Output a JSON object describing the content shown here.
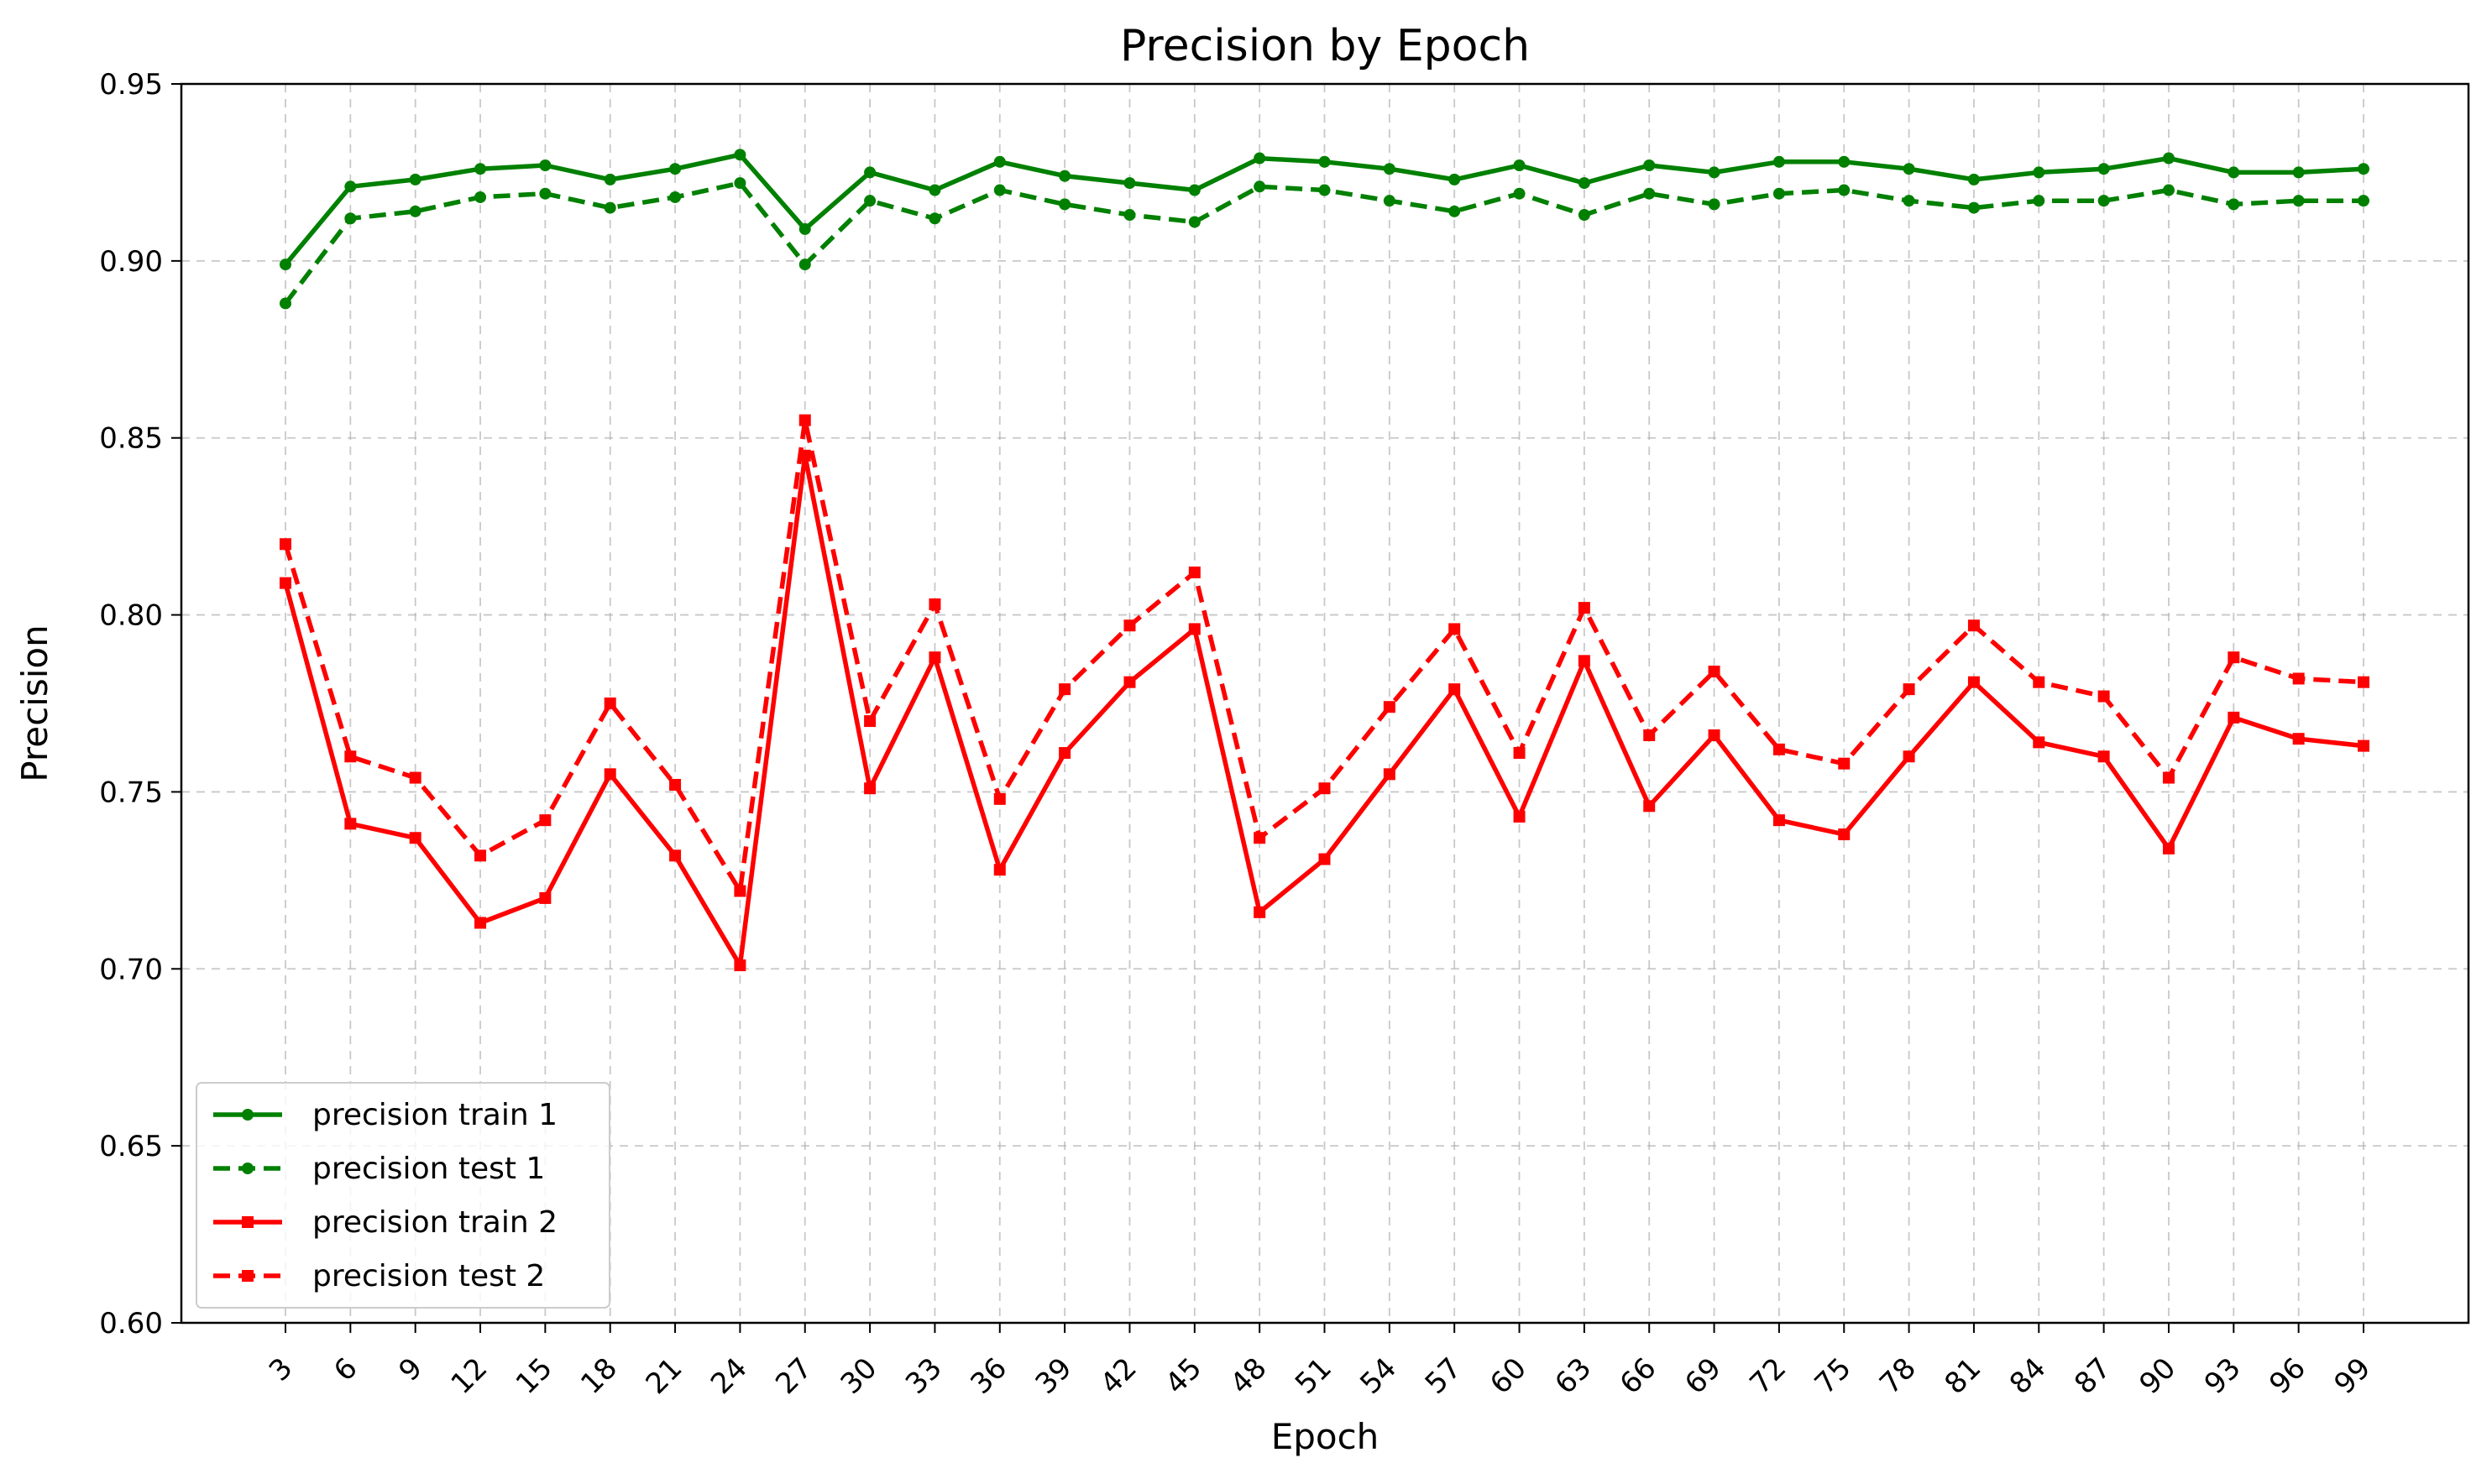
{
  "chart_data": {
    "type": "line",
    "title": "Precision by Epoch",
    "xlabel": "Epoch",
    "ylabel": "Precision",
    "ylim": [
      0.6,
      0.95
    ],
    "yticks": [
      "0.60",
      "0.65",
      "0.70",
      "0.75",
      "0.80",
      "0.85",
      "0.90",
      "0.95"
    ],
    "grid": true,
    "legend_position": "lower-left",
    "x": [
      3,
      6,
      9,
      12,
      15,
      18,
      21,
      24,
      27,
      30,
      33,
      36,
      39,
      42,
      45,
      48,
      51,
      54,
      57,
      60,
      63,
      66,
      69,
      72,
      75,
      78,
      81,
      84,
      87,
      90,
      93,
      96,
      99
    ],
    "series": [
      {
        "name": "precision train 1",
        "color": "#008000",
        "style": "solid",
        "marker": "circle",
        "values": [
          0.899,
          0.921,
          0.923,
          0.926,
          0.927,
          0.923,
          0.926,
          0.93,
          0.909,
          0.925,
          0.92,
          0.928,
          0.924,
          0.922,
          0.92,
          0.929,
          0.928,
          0.926,
          0.923,
          0.927,
          0.922,
          0.927,
          0.925,
          0.928,
          0.928,
          0.926,
          0.923,
          0.925,
          0.926,
          0.929,
          0.925,
          0.925,
          0.926
        ]
      },
      {
        "name": "precision test 1",
        "color": "#008000",
        "style": "dashed",
        "marker": "circle",
        "values": [
          0.888,
          0.912,
          0.914,
          0.918,
          0.919,
          0.915,
          0.918,
          0.922,
          0.899,
          0.917,
          0.912,
          0.92,
          0.916,
          0.913,
          0.911,
          0.921,
          0.92,
          0.917,
          0.914,
          0.919,
          0.913,
          0.919,
          0.916,
          0.919,
          0.92,
          0.917,
          0.915,
          0.917,
          0.917,
          0.92,
          0.916,
          0.917,
          0.917
        ]
      },
      {
        "name": "precision train 2",
        "color": "#ff0000",
        "style": "solid",
        "marker": "square",
        "values": [
          0.809,
          0.741,
          0.737,
          0.713,
          0.72,
          0.755,
          0.732,
          0.701,
          0.845,
          0.751,
          0.788,
          0.728,
          0.761,
          0.781,
          0.796,
          0.716,
          0.731,
          0.755,
          0.779,
          0.743,
          0.787,
          0.746,
          0.766,
          0.742,
          0.738,
          0.76,
          0.781,
          0.764,
          0.76,
          0.734,
          0.771,
          0.765,
          0.763
        ]
      },
      {
        "name": "precision test 2",
        "color": "#ff0000",
        "style": "dashed",
        "marker": "square",
        "values": [
          0.82,
          0.76,
          0.754,
          0.732,
          0.742,
          0.775,
          0.752,
          0.722,
          0.855,
          0.77,
          0.803,
          0.748,
          0.779,
          0.797,
          0.812,
          0.737,
          0.751,
          0.774,
          0.796,
          0.761,
          0.802,
          0.766,
          0.784,
          0.762,
          0.758,
          0.779,
          0.797,
          0.781,
          0.777,
          0.754,
          0.788,
          0.782,
          0.781
        ]
      }
    ]
  }
}
